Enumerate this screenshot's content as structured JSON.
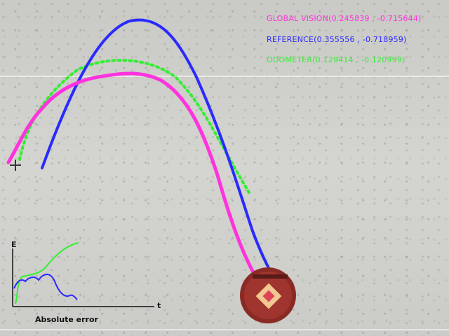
{
  "overlay": {
    "global_vision": "GLOBAL VISION(0.245839 , -0.715644)",
    "reference": "REFERENCE(0.355556 , -0.718959)",
    "odometer": "ODOMETER(0.129414 , -0.120999)"
  },
  "error_plot": {
    "y_label": "E",
    "x_label": "t",
    "caption": "Absolute error"
  },
  "colors": {
    "global_vision": "#ff33dd",
    "reference": "#2a2aff",
    "odometer": "#33ee33",
    "robot_body": "#8a2a25"
  },
  "icons": {
    "robot": "robot-top-view-icon",
    "start_marker": "crosshair-icon"
  }
}
